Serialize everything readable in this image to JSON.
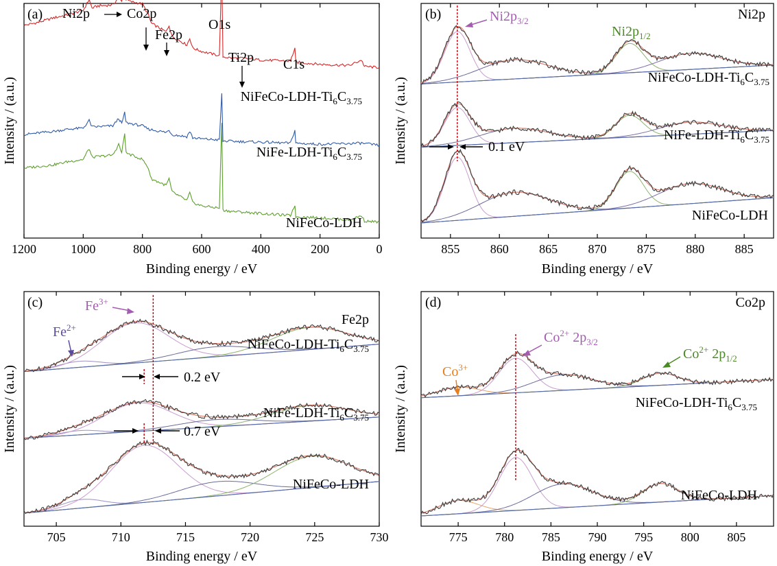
{
  "chart_data": [
    {
      "id": "a",
      "type": "line",
      "letter": "(a)",
      "title": "",
      "xlabel": "Binding energy / eV",
      "ylabel": "Intensity / (a.u.)",
      "xlim": [
        1200,
        0
      ],
      "x_reversed": true,
      "ylim": [
        0,
        10
      ],
      "xticks": [
        1200,
        1000,
        800,
        600,
        400,
        200,
        0
      ],
      "annotations": [
        "Ni2p",
        "Co2p",
        "Fe2p",
        "O1s",
        "Ti2p",
        "C1s"
      ],
      "series": [
        {
          "name": "NiFeCo-LDH-Ti6C3.75",
          "label_main": "NiFeCo-LDH-Ti",
          "label_sub1": "6",
          "label_mid": "C",
          "label_sub2": "3.75",
          "color": "#d62728",
          "offset": 7.2,
          "points": [
            [
              1200,
              2.1
            ],
            [
              1150,
              2.25
            ],
            [
              1100,
              2.45
            ],
            [
              1050,
              2.6
            ],
            [
              1000,
              2.8
            ],
            [
              980,
              3.3
            ],
            [
              970,
              2.9
            ],
            [
              950,
              3.0
            ],
            [
              900,
              3.05
            ],
            [
              880,
              3.4
            ],
            [
              870,
              3.2
            ],
            [
              860,
              3.9
            ],
            [
              855,
              3.3
            ],
            [
              840,
              3.2
            ],
            [
              800,
              3.1
            ],
            [
              780,
              2.6
            ],
            [
              770,
              2.2
            ],
            [
              720,
              1.8
            ],
            [
              710,
              2.1
            ],
            [
              700,
              1.6
            ],
            [
              650,
              1.2
            ],
            [
              640,
              1.5
            ],
            [
              630,
              1.05
            ],
            [
              600,
              0.9
            ],
            [
              540,
              0.7
            ],
            [
              532,
              4.7
            ],
            [
              528,
              0.65
            ],
            [
              500,
              0.6
            ],
            [
              460,
              0.58
            ],
            [
              400,
              0.5
            ],
            [
              300,
              0.45
            ],
            [
              285,
              1.05
            ],
            [
              282,
              0.4
            ],
            [
              200,
              0.3
            ],
            [
              100,
              0.25
            ],
            [
              60,
              0.5
            ],
            [
              50,
              0.2
            ],
            [
              0,
              0.15
            ]
          ]
        },
        {
          "name": "NiFe-LDH-Ti6C3.75",
          "label_main": "NiFe-LDH-Ti",
          "label_sub1": "6",
          "label_mid": "C",
          "label_sub2": "3.75",
          "color": "#2f5aa8",
          "offset": 3.55,
          "points": [
            [
              1200,
              0.7
            ],
            [
              1100,
              0.85
            ],
            [
              1050,
              0.95
            ],
            [
              1000,
              1.0
            ],
            [
              980,
              1.35
            ],
            [
              970,
              1.05
            ],
            [
              900,
              1.1
            ],
            [
              880,
              1.45
            ],
            [
              870,
              1.2
            ],
            [
              860,
              1.7
            ],
            [
              855,
              1.25
            ],
            [
              800,
              1.1
            ],
            [
              780,
              0.95
            ],
            [
              720,
              0.8
            ],
            [
              710,
              0.9
            ],
            [
              700,
              0.7
            ],
            [
              650,
              0.6
            ],
            [
              640,
              0.85
            ],
            [
              630,
              0.55
            ],
            [
              600,
              0.5
            ],
            [
              540,
              0.45
            ],
            [
              532,
              2.6
            ],
            [
              528,
              0.4
            ],
            [
              400,
              0.35
            ],
            [
              300,
              0.3
            ],
            [
              285,
              0.9
            ],
            [
              282,
              0.3
            ],
            [
              200,
              0.25
            ],
            [
              60,
              0.3
            ],
            [
              0,
              0.2
            ]
          ]
        },
        {
          "name": "NiFeCo-LDH",
          "label_main": "NiFeCo-LDH",
          "label_sub1": "",
          "label_mid": "",
          "label_sub2": "",
          "color": "#5ca02c",
          "offset": 0.0,
          "points": [
            [
              1200,
              2.7
            ],
            [
              1100,
              2.85
            ],
            [
              1050,
              3.0
            ],
            [
              1000,
              3.1
            ],
            [
              980,
              3.6
            ],
            [
              970,
              3.2
            ],
            [
              900,
              3.3
            ],
            [
              880,
              3.8
            ],
            [
              870,
              3.4
            ],
            [
              860,
              4.3
            ],
            [
              855,
              3.4
            ],
            [
              800,
              3.1
            ],
            [
              780,
              2.7
            ],
            [
              770,
              2.2
            ],
            [
              720,
              1.9
            ],
            [
              710,
              2.2
            ],
            [
              700,
              1.6
            ],
            [
              650,
              1.2
            ],
            [
              640,
              1.55
            ],
            [
              630,
              1.1
            ],
            [
              600,
              0.95
            ],
            [
              540,
              0.85
            ],
            [
              532,
              4.8
            ],
            [
              528,
              0.75
            ],
            [
              500,
              0.7
            ],
            [
              400,
              0.6
            ],
            [
              300,
              0.5
            ],
            [
              285,
              1.0
            ],
            [
              282,
              0.45
            ],
            [
              200,
              0.4
            ],
            [
              100,
              0.3
            ],
            [
              60,
              0.5
            ],
            [
              50,
              0.25
            ],
            [
              0,
              0.2
            ]
          ]
        }
      ]
    },
    {
      "id": "b",
      "type": "line",
      "letter": "(b)",
      "title": "Ni2p",
      "xlabel": "Binding energy / eV",
      "ylabel": "Intensity / (a.u.)",
      "xlim": [
        852,
        888
      ],
      "ylim": [
        0,
        10
      ],
      "xticks": [
        855,
        860,
        865,
        870,
        875,
        880,
        885
      ],
      "annotations": {
        "peak32_main": "Ni2p",
        "peak32_sub": "3/2",
        "peak12_main": "Ni2p",
        "peak12_sub": "1/2",
        "shift": "0.1 eV"
      },
      "peaks": [
        [
          855.7,
          1.0,
          1.3
        ],
        [
          861.5,
          0.38,
          3.5
        ],
        [
          873.3,
          0.58,
          1.4
        ],
        [
          879.5,
          0.32,
          3.2
        ]
      ],
      "series": [
        {
          "name": "NiFeCo-LDH-Ti6C3.75",
          "label_main": "NiFeCo-LDH-Ti",
          "label_sub1": "6",
          "label_mid": "C",
          "label_sub2": "3.75",
          "offset": 6.6,
          "scale": 2.4,
          "baseline": [
            0.0,
            0.9
          ]
        },
        {
          "name": "NiFe-LDH-Ti6C3.75",
          "label_main": "NiFe-LDH-Ti",
          "label_sub1": "6",
          "label_mid": "C",
          "label_sub2": "3.75",
          "offset": 3.6,
          "scale": 1.8,
          "baseline": [
            0.0,
            0.8
          ]
        },
        {
          "name": "NiFeCo-LDH",
          "label_main": "NiFeCo-LDH",
          "label_sub1": "",
          "label_mid": "",
          "label_sub2": "",
          "offset": 0.0,
          "scale": 3.0,
          "baseline": [
            0.0,
            1.2
          ]
        }
      ],
      "colors": {
        "peak1": "#c89ccf",
        "peak2": "#6b6b9c",
        "peak3": "#8db36b",
        "peak4": "#7b6fa8",
        "envelope": "#e08a7a",
        "raw": "#3c3c3c",
        "baseline": "#5468a8",
        "marker": "#c0000b",
        "ann32": "#a35cb0",
        "ann12": "#4a8a22"
      }
    },
    {
      "id": "c",
      "type": "line",
      "letter": "(c)",
      "title": "Fe2p",
      "xlabel": "Binding energy / eV",
      "ylabel": "Intensity / (a.u.)",
      "xlim": [
        702.5,
        730
      ],
      "ylim": [
        0,
        10
      ],
      "xticks": [
        705,
        710,
        715,
        720,
        725,
        730
      ],
      "annotations": {
        "fe3_main": "Fe",
        "fe3_sup": "3+",
        "fe2_main": "Fe",
        "fe2_sup": "2+",
        "shift1": "0.2 eV",
        "shift2": "0.7 eV"
      },
      "peaks": [
        [
          707.0,
          0.15,
          1.6
        ],
        [
          711.8,
          1.0,
          2.6
        ],
        [
          717.5,
          0.25,
          3.0
        ],
        [
          724.8,
          0.55,
          2.9
        ]
      ],
      "series": [
        {
          "name": "NiFeCo-LDH-Ti6C3.75",
          "label_main": "NiFeCo-LDH-Ti",
          "label_sub1": "6",
          "label_mid": "C",
          "label_sub2": "3.75",
          "offset": 6.7,
          "scale": 1.9,
          "baseline": [
            0.0,
            1.3
          ],
          "center_shift": 0.7
        },
        {
          "name": "NiFe-LDH-Ti6C3.75",
          "label_main": "NiFe-LDH-Ti",
          "label_sub1": "6",
          "label_mid": "C",
          "label_sub2": "3.75",
          "offset": 3.55,
          "scale": 1.35,
          "baseline": [
            0.0,
            1.0
          ],
          "center_shift": 0.5
        },
        {
          "name": "NiFeCo-LDH",
          "label_main": "NiFeCo-LDH",
          "label_sub1": "",
          "label_mid": "",
          "label_sub2": "",
          "offset": 0.0,
          "scale": 2.7,
          "baseline": [
            0.0,
            1.5
          ],
          "center_shift": 0.0
        }
      ],
      "colors": {
        "peak1": "#9d8fc4",
        "peak2": "#c89ccf",
        "peak3": "#6b6b9c",
        "peak4": "#8db36b",
        "envelope": "#e08a7a",
        "raw": "#3c3c3c",
        "baseline": "#5468a8",
        "marker": "#c0000b",
        "fe3": "#a35cb0",
        "fe2": "#5b4aa0"
      }
    },
    {
      "id": "d",
      "type": "line",
      "letter": "(d)",
      "title": "Co2p",
      "xlabel": "Binding energy / eV",
      "ylabel": "Intensity / (a.u.)",
      "xlim": [
        771,
        809
      ],
      "ylim": [
        0,
        10
      ],
      "xticks": [
        775,
        780,
        785,
        790,
        795,
        800,
        805
      ],
      "annotations": {
        "co3_main": "Co",
        "co3_sup": "3+",
        "co32_main": "Co",
        "co32_sup": "2+",
        "co32_tail": " 2p",
        "co32_sub": "3/2",
        "co12_main": "Co",
        "co12_sup": "2+",
        "co12_tail": " 2p",
        "co12_sub": "1/2"
      },
      "peaks": [
        [
          775.0,
          0.25,
          2.2
        ],
        [
          781.2,
          1.0,
          1.8
        ],
        [
          786.3,
          0.45,
          3.2
        ],
        [
          796.8,
          0.35,
          1.9
        ]
      ],
      "series": [
        {
          "name": "NiFeCo-LDH-Ti6C3.75",
          "label_main": "NiFeCo-LDH-Ti",
          "label_sub1": "6",
          "label_mid": "C",
          "label_sub2": "3.75",
          "offset": 5.8,
          "scale": 1.7,
          "baseline": [
            0.0,
            0.9
          ]
        },
        {
          "name": "NiFeCo-LDH",
          "label_main": "NiFeCo-LDH",
          "label_sub1": "",
          "label_mid": "",
          "label_sub2": "",
          "offset": 0.0,
          "scale": 2.6,
          "baseline": [
            0.0,
            1.0
          ]
        }
      ],
      "colors": {
        "peak1": "#e8a46b",
        "peak2": "#c89ccf",
        "peak3": "#6b6b9c",
        "peak4": "#8db36b",
        "envelope": "#e08a7a",
        "raw": "#3c3c3c",
        "baseline": "#5468a8",
        "marker": "#c0000b",
        "co3": "#e67e22",
        "co32": "#a35cb0",
        "co12": "#4a8a22"
      }
    }
  ]
}
